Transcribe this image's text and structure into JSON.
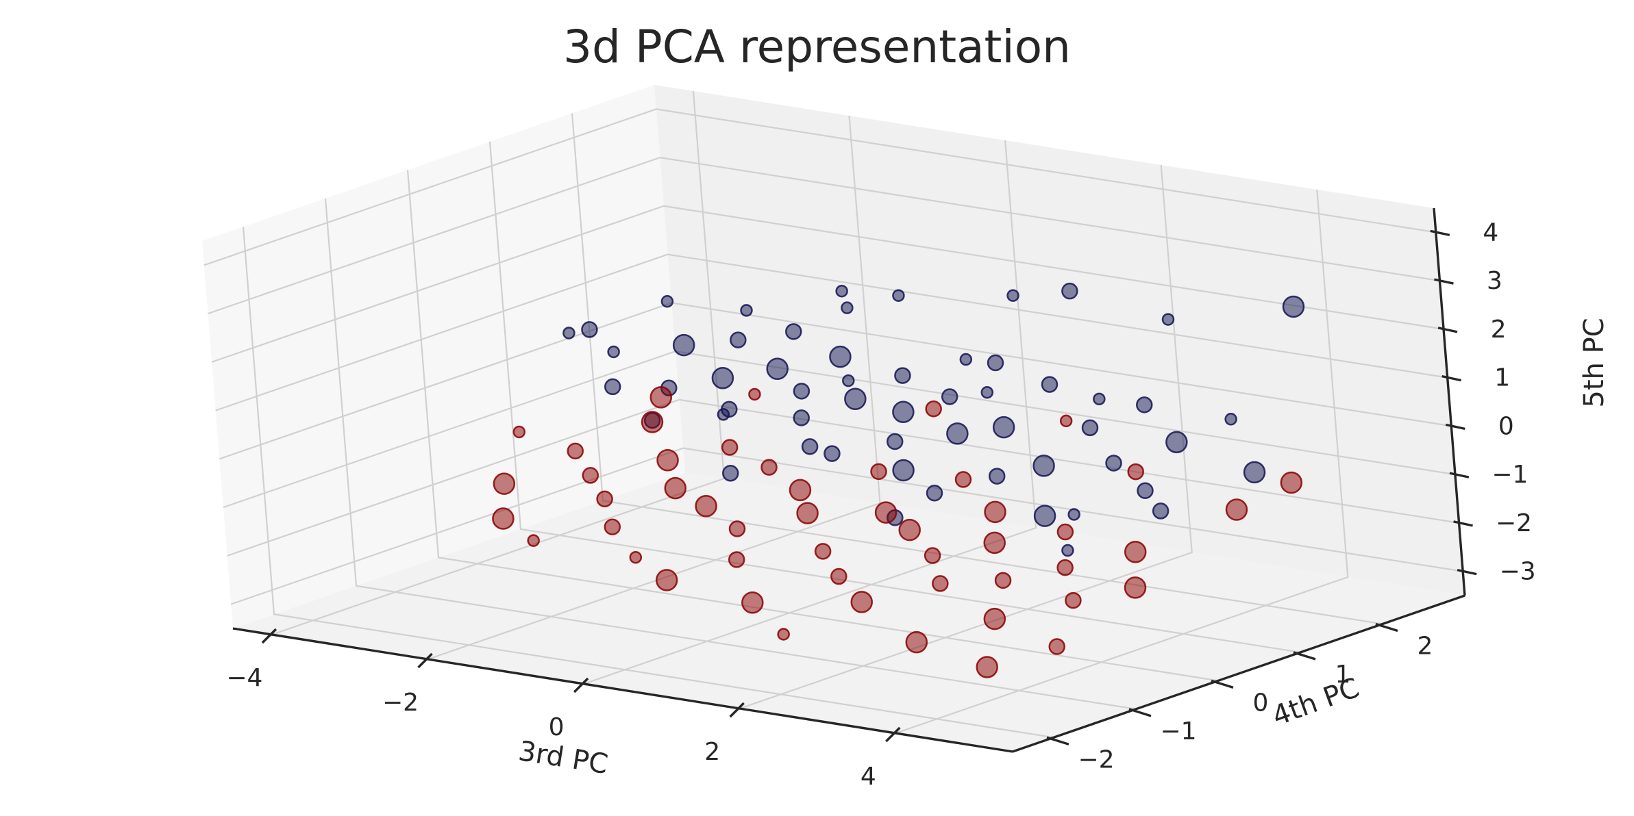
{
  "chart_data": {
    "type": "scatter",
    "projection": "3d",
    "title": "3d PCA representation",
    "xlabel": "3rd PC",
    "ylabel": "4th PC",
    "zlabel": "5th PC",
    "xlim": [
      -4.5,
      5.5
    ],
    "ylim": [
      -2.5,
      3.0
    ],
    "zlim": [
      -3.5,
      4.5
    ],
    "x_ticks": [
      -4,
      -2,
      0,
      2,
      4
    ],
    "y_ticks": [
      -2,
      -1,
      0,
      1,
      2
    ],
    "z_ticks": [
      -3,
      -2,
      -1,
      0,
      1,
      2,
      3,
      4
    ],
    "x_tick_labels": [
      "−4",
      "−2",
      "0",
      "2",
      "4"
    ],
    "y_tick_labels": [
      "−2",
      "−1",
      "0",
      "1",
      "2"
    ],
    "z_tick_labels": [
      "−3",
      "−2",
      "−1",
      "0",
      "1",
      "2",
      "3",
      "4"
    ],
    "grid": true,
    "marker_alpha": 0.5,
    "series": [
      {
        "color": "#141452",
        "points": [
          {
            "x": -4.0,
            "y": 1.3,
            "z": 0.5,
            "s": 1
          },
          {
            "x": -3.4,
            "y": 1.0,
            "z": 0.9,
            "s": 2
          },
          {
            "x": -3.0,
            "y": 0.9,
            "z": 0.6,
            "s": 1
          },
          {
            "x": -2.8,
            "y": 1.4,
            "z": 1.4,
            "s": 1
          },
          {
            "x": -2.5,
            "y": 0.4,
            "z": 0.3,
            "s": 2
          },
          {
            "x": -2.3,
            "y": 1.1,
            "z": 0.8,
            "s": 3
          },
          {
            "x": -2.1,
            "y": 0.7,
            "z": 0.2,
            "s": 2
          },
          {
            "x": -2.0,
            "y": 1.6,
            "z": 1.3,
            "s": 1
          },
          {
            "x": -1.8,
            "y": 0.2,
            "z": -0.1,
            "s": 2
          },
          {
            "x": -1.7,
            "y": 1.2,
            "z": 1.0,
            "s": 2
          },
          {
            "x": -1.5,
            "y": 0.8,
            "z": 0.5,
            "s": 3
          },
          {
            "x": -1.3,
            "y": 1.5,
            "z": 1.1,
            "s": 2
          },
          {
            "x": -1.2,
            "y": 0.5,
            "z": 0.0,
            "s": 1
          },
          {
            "x": -1.0,
            "y": 1.0,
            "z": 0.7,
            "s": 3
          },
          {
            "x": -0.9,
            "y": 0.3,
            "z": 0.3,
            "s": 2
          },
          {
            "x": -0.8,
            "y": 1.7,
            "z": 1.6,
            "s": 1
          },
          {
            "x": -0.6,
            "y": 0.9,
            "z": 0.4,
            "s": 2
          },
          {
            "x": -0.5,
            "y": 1.3,
            "z": 0.9,
            "s": 3
          },
          {
            "x": -0.3,
            "y": 0.6,
            "z": 0.1,
            "s": 2
          },
          {
            "x": -0.2,
            "y": 1.1,
            "z": 0.6,
            "s": 1
          },
          {
            "x": 0.0,
            "y": 0.4,
            "z": -0.3,
            "s": 2
          },
          {
            "x": 0.1,
            "y": 1.5,
            "z": 2.2,
            "s": 1
          },
          {
            "x": 0.2,
            "y": 0.8,
            "z": 0.5,
            "s": 3
          },
          {
            "x": 0.4,
            "y": 1.2,
            "z": 0.8,
            "s": 2
          },
          {
            "x": 0.5,
            "y": 0.2,
            "z": -0.2,
            "s": 2
          },
          {
            "x": 0.7,
            "y": 0.9,
            "z": 0.3,
            "s": 3
          },
          {
            "x": 0.8,
            "y": 1.6,
            "z": 1.0,
            "s": 1
          },
          {
            "x": 1.0,
            "y": 0.5,
            "z": 0.0,
            "s": 2
          },
          {
            "x": 1.1,
            "y": 1.1,
            "z": 0.6,
            "s": 2
          },
          {
            "x": 1.3,
            "y": 0.3,
            "z": -0.4,
            "s": 3
          },
          {
            "x": 1.4,
            "y": 1.4,
            "z": 1.2,
            "s": 2
          },
          {
            "x": 1.6,
            "y": 0.7,
            "z": 0.2,
            "s": 3
          },
          {
            "x": 1.7,
            "y": 1.0,
            "z": 0.9,
            "s": 1
          },
          {
            "x": 1.9,
            "y": 0.1,
            "z": -0.6,
            "s": 2
          },
          {
            "x": 2.0,
            "y": 1.8,
            "z": 2.6,
            "s": 2
          },
          {
            "x": 2.1,
            "y": 0.8,
            "z": 0.4,
            "s": 3
          },
          {
            "x": 2.3,
            "y": 1.2,
            "z": 1.1,
            "s": 2
          },
          {
            "x": 2.4,
            "y": 0.4,
            "z": -0.3,
            "s": 2
          },
          {
            "x": 2.6,
            "y": 1.5,
            "z": 0.7,
            "s": 1
          },
          {
            "x": 2.8,
            "y": 0.6,
            "z": -0.1,
            "s": 3
          },
          {
            "x": 3.0,
            "y": 1.0,
            "z": 0.5,
            "s": 2
          },
          {
            "x": 3.2,
            "y": 0.2,
            "z": -0.8,
            "s": 3
          },
          {
            "x": 3.4,
            "y": 1.3,
            "z": 0.9,
            "s": 2
          },
          {
            "x": 3.6,
            "y": 0.7,
            "z": 0.1,
            "s": 2
          },
          {
            "x": 3.8,
            "y": 0.0,
            "z": -0.5,
            "s": 1
          },
          {
            "x": 4.0,
            "y": 1.1,
            "z": 0.4,
            "s": 3
          },
          {
            "x": 4.2,
            "y": 0.5,
            "z": -0.2,
            "s": 2
          },
          {
            "x": 4.4,
            "y": 1.4,
            "z": 0.8,
            "s": 1
          },
          {
            "x": 4.6,
            "y": 0.3,
            "z": -0.4,
            "s": 2
          },
          {
            "x": 5.0,
            "y": 1.7,
            "z": 3.1,
            "s": 3
          },
          {
            "x": 5.2,
            "y": 0.9,
            "z": 0.2,
            "s": 3
          },
          {
            "x": -1.4,
            "y": 2.2,
            "z": 1.5,
            "s": 1
          },
          {
            "x": 0.6,
            "y": 2.4,
            "z": 1.8,
            "s": 1
          },
          {
            "x": 1.8,
            "y": -0.3,
            "z": -0.9,
            "s": 2
          },
          {
            "x": 3.9,
            "y": -0.2,
            "z": -1.1,
            "s": 1
          },
          {
            "x": -0.4,
            "y": -0.2,
            "z": -0.6,
            "s": 2
          },
          {
            "x": 2.7,
            "y": 2.3,
            "z": 1.9,
            "s": 1
          }
        ]
      },
      {
        "color": "#8b0000",
        "points": [
          {
            "x": -4.2,
            "y": 0.8,
            "z": -1.3,
            "s": 1
          },
          {
            "x": -3.9,
            "y": 0.3,
            "z": -2.0,
            "s": 3
          },
          {
            "x": -3.6,
            "y": 0.9,
            "z": -1.6,
            "s": 2
          },
          {
            "x": -3.4,
            "y": -0.2,
            "z": -2.3,
            "s": 3
          },
          {
            "x": -3.1,
            "y": 0.6,
            "z": -1.8,
            "s": 2
          },
          {
            "x": -2.9,
            "y": 1.2,
            "z": -1.0,
            "s": 3
          },
          {
            "x": -2.7,
            "y": -0.5,
            "z": -2.4,
            "s": 1
          },
          {
            "x": -2.5,
            "y": 0.2,
            "z": -1.9,
            "s": 2
          },
          {
            "x": -2.3,
            "y": 0.8,
            "z": -1.4,
            "s": 3
          },
          {
            "x": -2.1,
            "y": -0.1,
            "z": -2.2,
            "s": 2
          },
          {
            "x": -1.9,
            "y": 0.5,
            "z": -1.7,
            "s": 3
          },
          {
            "x": -1.7,
            "y": 1.0,
            "z": -1.1,
            "s": 2
          },
          {
            "x": -1.5,
            "y": -0.4,
            "z": -2.5,
            "s": 1
          },
          {
            "x": -1.3,
            "y": 0.3,
            "z": -1.8,
            "s": 3
          },
          {
            "x": -1.1,
            "y": 0.9,
            "z": -1.3,
            "s": 2
          },
          {
            "x": -0.9,
            "y": -0.6,
            "z": -2.7,
            "s": 3
          },
          {
            "x": -0.7,
            "y": 0.1,
            "z": -2.0,
            "s": 2
          },
          {
            "x": -0.5,
            "y": 0.7,
            "z": -1.5,
            "s": 3
          },
          {
            "x": -0.3,
            "y": -0.3,
            "z": -2.3,
            "s": 2
          },
          {
            "x": -0.1,
            "y": 0.4,
            "z": -1.7,
            "s": 3
          },
          {
            "x": 0.1,
            "y": 1.1,
            "z": -1.2,
            "s": 2
          },
          {
            "x": 0.3,
            "y": -0.7,
            "z": -2.8,
            "s": 3
          },
          {
            "x": 0.5,
            "y": 0.0,
            "z": -2.1,
            "s": 2
          },
          {
            "x": 0.7,
            "y": 0.6,
            "z": -1.6,
            "s": 3
          },
          {
            "x": 0.9,
            "y": -0.2,
            "z": -2.4,
            "s": 2
          },
          {
            "x": 1.1,
            "y": 0.5,
            "z": -1.8,
            "s": 3
          },
          {
            "x": 1.3,
            "y": 1.0,
            "z": -1.0,
            "s": 2
          },
          {
            "x": 1.5,
            "y": -0.5,
            "z": -2.6,
            "s": 3
          },
          {
            "x": 1.7,
            "y": 0.2,
            "z": -2.0,
            "s": 2
          },
          {
            "x": 1.9,
            "y": 0.8,
            "z": -1.4,
            "s": 3
          },
          {
            "x": 2.1,
            "y": -0.1,
            "z": -2.3,
            "s": 2
          },
          {
            "x": 2.3,
            "y": 0.4,
            "z": -1.7,
            "s": 3
          },
          {
            "x": 2.5,
            "y": -0.8,
            "z": -3.0,
            "s": 3
          },
          {
            "x": 2.7,
            "y": 0.1,
            "z": -2.2,
            "s": 2
          },
          {
            "x": 2.9,
            "y": 0.7,
            "z": -1.5,
            "s": 2
          },
          {
            "x": 3.1,
            "y": -0.4,
            "z": -2.6,
            "s": 3
          },
          {
            "x": 3.3,
            "y": 0.3,
            "z": -1.9,
            "s": 2
          },
          {
            "x": 3.5,
            "y": -0.9,
            "z": -3.2,
            "s": 3
          },
          {
            "x": 3.7,
            "y": 0.0,
            "z": -2.3,
            "s": 2
          },
          {
            "x": 3.9,
            "y": 0.6,
            "z": -1.6,
            "s": 3
          },
          {
            "x": 4.1,
            "y": -0.6,
            "z": -2.8,
            "s": 2
          },
          {
            "x": 4.3,
            "y": 0.2,
            "z": -2.0,
            "s": 3
          },
          {
            "x": 4.6,
            "y": 1.2,
            "z": -0.9,
            "s": 3
          },
          {
            "x": 4.9,
            "y": 1.6,
            "z": -0.5,
            "s": 3
          },
          {
            "x": -2.2,
            "y": 1.8,
            "z": -0.6,
            "s": 1
          },
          {
            "x": 0.0,
            "y": 1.9,
            "z": -0.4,
            "s": 2
          },
          {
            "x": 1.6,
            "y": 2.0,
            "z": -0.3,
            "s": 1
          },
          {
            "x": -3.2,
            "y": 1.6,
            "z": -0.8,
            "s": 3
          },
          {
            "x": 3.0,
            "y": 1.5,
            "z": -0.7,
            "s": 2
          },
          {
            "x": 1.0,
            "y": -1.0,
            "z": -3.1,
            "s": 1
          }
        ]
      }
    ]
  }
}
